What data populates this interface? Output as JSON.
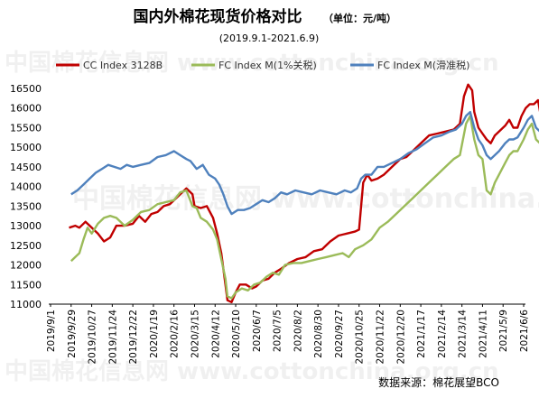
{
  "chart_data": {
    "type": "line",
    "title": "国内外棉花现货价格对比",
    "unit": "（单位：元/吨）",
    "subtitle": "(2019.9.1-2021.6.9)",
    "source": "数据来源：棉花展望BCO",
    "watermark": "中国棉花信息网 www.cottonchina.org.cn",
    "legend_position": "top",
    "ylim": [
      11000,
      16500
    ],
    "yticks": [
      "16500",
      "16000",
      "15500",
      "15000",
      "14500",
      "14000",
      "13500",
      "13000",
      "12500",
      "12000",
      "11500",
      "11000"
    ],
    "xlabels": [
      "2019/9/1",
      "2019/9/29",
      "2019/10/27",
      "2019/11/24",
      "2019/12/22",
      "2020/1/19",
      "2020/2/16",
      "2020/3/15",
      "2020/4/12",
      "2020/5/10",
      "2020/6/7",
      "2020/7/5",
      "2020/8/2",
      "2020/8/30",
      "2020/9/27",
      "2020/10/25",
      "2020/11/22",
      "2020/12/20",
      "2021/1/17",
      "2021/2/14",
      "2021/3/14",
      "2021/4/11",
      "2021/5/9",
      "2021/6/6"
    ],
    "series": [
      {
        "name": "CC Index 3128B",
        "color": "#c00000",
        "points": [
          [
            0.9,
            12950
          ],
          [
            1.2,
            13000
          ],
          [
            1.4,
            12950
          ],
          [
            1.7,
            13100
          ],
          [
            2.0,
            12950
          ],
          [
            2.3,
            12800
          ],
          [
            2.6,
            12600
          ],
          [
            2.9,
            12700
          ],
          [
            3.2,
            13000
          ],
          [
            3.6,
            13000
          ],
          [
            4.0,
            13050
          ],
          [
            4.3,
            13250
          ],
          [
            4.6,
            13100
          ],
          [
            4.9,
            13300
          ],
          [
            5.2,
            13350
          ],
          [
            5.5,
            13500
          ],
          [
            5.8,
            13550
          ],
          [
            6.2,
            13750
          ],
          [
            6.6,
            13950
          ],
          [
            6.9,
            13800
          ],
          [
            7.0,
            13500
          ],
          [
            7.3,
            13450
          ],
          [
            7.6,
            13500
          ],
          [
            7.9,
            13200
          ],
          [
            8.1,
            12800
          ],
          [
            8.3,
            12300
          ],
          [
            8.5,
            11500
          ],
          [
            8.6,
            11100
          ],
          [
            8.8,
            11050
          ],
          [
            9.0,
            11300
          ],
          [
            9.2,
            11500
          ],
          [
            9.5,
            11500
          ],
          [
            9.8,
            11400
          ],
          [
            10.0,
            11450
          ],
          [
            10.3,
            11600
          ],
          [
            10.6,
            11650
          ],
          [
            10.9,
            11800
          ],
          [
            11.2,
            11900
          ],
          [
            11.6,
            12050
          ],
          [
            12.0,
            12150
          ],
          [
            12.4,
            12200
          ],
          [
            12.8,
            12350
          ],
          [
            13.2,
            12400
          ],
          [
            13.6,
            12600
          ],
          [
            14.0,
            12750
          ],
          [
            14.4,
            12800
          ],
          [
            14.8,
            12850
          ],
          [
            15.0,
            12900
          ],
          [
            15.1,
            13500
          ],
          [
            15.2,
            14100
          ],
          [
            15.4,
            14300
          ],
          [
            15.6,
            14150
          ],
          [
            15.9,
            14200
          ],
          [
            16.2,
            14300
          ],
          [
            16.6,
            14500
          ],
          [
            17.0,
            14700
          ],
          [
            17.3,
            14750
          ],
          [
            17.6,
            14900
          ],
          [
            18.0,
            15100
          ],
          [
            18.4,
            15300
          ],
          [
            18.8,
            15350
          ],
          [
            19.2,
            15400
          ],
          [
            19.6,
            15450
          ],
          [
            19.9,
            15600
          ],
          [
            20.1,
            16300
          ],
          [
            20.3,
            16600
          ],
          [
            20.5,
            16450
          ],
          [
            20.6,
            15900
          ],
          [
            20.8,
            15500
          ],
          [
            21.0,
            15350
          ],
          [
            21.2,
            15200
          ],
          [
            21.4,
            15100
          ],
          [
            21.6,
            15300
          ],
          [
            21.8,
            15400
          ],
          [
            22.1,
            15550
          ],
          [
            22.3,
            15700
          ],
          [
            22.5,
            15500
          ],
          [
            22.7,
            15500
          ],
          [
            22.9,
            15800
          ],
          [
            23.1,
            16000
          ],
          [
            23.3,
            16100
          ],
          [
            23.5,
            16100
          ],
          [
            23.7,
            16200
          ],
          [
            23.8,
            15900
          ]
        ]
      },
      {
        "name": "FC Index M(1%关税)",
        "color": "#9bbb59",
        "points": [
          [
            1.0,
            12100
          ],
          [
            1.2,
            12200
          ],
          [
            1.4,
            12300
          ],
          [
            1.6,
            12650
          ],
          [
            1.8,
            12950
          ],
          [
            2.0,
            12800
          ],
          [
            2.3,
            13050
          ],
          [
            2.6,
            13200
          ],
          [
            2.9,
            13250
          ],
          [
            3.2,
            13200
          ],
          [
            3.6,
            13000
          ],
          [
            4.0,
            13150
          ],
          [
            4.4,
            13350
          ],
          [
            4.8,
            13400
          ],
          [
            5.2,
            13550
          ],
          [
            5.6,
            13600
          ],
          [
            6.0,
            13650
          ],
          [
            6.3,
            13850
          ],
          [
            6.6,
            13900
          ],
          [
            6.9,
            13500
          ],
          [
            7.1,
            13450
          ],
          [
            7.3,
            13200
          ],
          [
            7.6,
            13100
          ],
          [
            7.9,
            12900
          ],
          [
            8.1,
            12650
          ],
          [
            8.3,
            12150
          ],
          [
            8.5,
            11650
          ],
          [
            8.6,
            11200
          ],
          [
            8.8,
            11150
          ],
          [
            9.0,
            11300
          ],
          [
            9.3,
            11400
          ],
          [
            9.6,
            11350
          ],
          [
            9.9,
            11500
          ],
          [
            10.2,
            11550
          ],
          [
            10.5,
            11700
          ],
          [
            10.8,
            11800
          ],
          [
            11.1,
            11750
          ],
          [
            11.4,
            12000
          ],
          [
            11.8,
            12050
          ],
          [
            12.2,
            12050
          ],
          [
            12.6,
            12100
          ],
          [
            13.0,
            12150
          ],
          [
            13.4,
            12200
          ],
          [
            13.8,
            12250
          ],
          [
            14.2,
            12300
          ],
          [
            14.5,
            12200
          ],
          [
            14.8,
            12400
          ],
          [
            15.2,
            12500
          ],
          [
            15.6,
            12650
          ],
          [
            16.0,
            12950
          ],
          [
            16.4,
            13100
          ],
          [
            16.8,
            13300
          ],
          [
            17.2,
            13500
          ],
          [
            17.6,
            13700
          ],
          [
            18.0,
            13900
          ],
          [
            18.4,
            14100
          ],
          [
            18.8,
            14300
          ],
          [
            19.2,
            14500
          ],
          [
            19.6,
            14700
          ],
          [
            19.9,
            14800
          ],
          [
            20.2,
            15600
          ],
          [
            20.4,
            15800
          ],
          [
            20.6,
            15200
          ],
          [
            20.8,
            14800
          ],
          [
            21.0,
            14700
          ],
          [
            21.2,
            13900
          ],
          [
            21.4,
            13800
          ],
          [
            21.6,
            14100
          ],
          [
            21.8,
            14300
          ],
          [
            22.1,
            14600
          ],
          [
            22.3,
            14800
          ],
          [
            22.5,
            14900
          ],
          [
            22.7,
            14900
          ],
          [
            23.0,
            15200
          ],
          [
            23.2,
            15450
          ],
          [
            23.4,
            15600
          ],
          [
            23.6,
            15200
          ],
          [
            23.8,
            15100
          ]
        ]
      },
      {
        "name": "FC Index M(滑准税)",
        "color": "#4f81bd",
        "points": [
          [
            1.0,
            13800
          ],
          [
            1.3,
            13900
          ],
          [
            1.6,
            14050
          ],
          [
            1.9,
            14200
          ],
          [
            2.2,
            14350
          ],
          [
            2.5,
            14450
          ],
          [
            2.8,
            14550
          ],
          [
            3.1,
            14500
          ],
          [
            3.4,
            14450
          ],
          [
            3.7,
            14550
          ],
          [
            4.0,
            14500
          ],
          [
            4.4,
            14550
          ],
          [
            4.8,
            14600
          ],
          [
            5.2,
            14750
          ],
          [
            5.6,
            14800
          ],
          [
            6.0,
            14900
          ],
          [
            6.3,
            14800
          ],
          [
            6.6,
            14700
          ],
          [
            6.8,
            14650
          ],
          [
            7.1,
            14450
          ],
          [
            7.4,
            14550
          ],
          [
            7.7,
            14300
          ],
          [
            8.0,
            14200
          ],
          [
            8.2,
            14050
          ],
          [
            8.4,
            13800
          ],
          [
            8.6,
            13500
          ],
          [
            8.8,
            13300
          ],
          [
            9.1,
            13400
          ],
          [
            9.4,
            13400
          ],
          [
            9.7,
            13450
          ],
          [
            10.0,
            13550
          ],
          [
            10.3,
            13650
          ],
          [
            10.6,
            13600
          ],
          [
            10.9,
            13700
          ],
          [
            11.2,
            13850
          ],
          [
            11.5,
            13800
          ],
          [
            11.9,
            13900
          ],
          [
            12.3,
            13850
          ],
          [
            12.7,
            13800
          ],
          [
            13.1,
            13900
          ],
          [
            13.5,
            13850
          ],
          [
            13.9,
            13800
          ],
          [
            14.3,
            13900
          ],
          [
            14.6,
            13850
          ],
          [
            14.9,
            13950
          ],
          [
            15.1,
            14200
          ],
          [
            15.3,
            14300
          ],
          [
            15.6,
            14300
          ],
          [
            15.9,
            14500
          ],
          [
            16.2,
            14500
          ],
          [
            16.6,
            14600
          ],
          [
            17.0,
            14700
          ],
          [
            17.4,
            14850
          ],
          [
            17.8,
            14950
          ],
          [
            18.2,
            15100
          ],
          [
            18.6,
            15250
          ],
          [
            19.0,
            15300
          ],
          [
            19.4,
            15400
          ],
          [
            19.7,
            15450
          ],
          [
            20.0,
            15600
          ],
          [
            20.2,
            15800
          ],
          [
            20.4,
            15900
          ],
          [
            20.6,
            15500
          ],
          [
            20.8,
            15200
          ],
          [
            21.0,
            15050
          ],
          [
            21.2,
            14800
          ],
          [
            21.4,
            14700
          ],
          [
            21.6,
            14800
          ],
          [
            21.8,
            14900
          ],
          [
            22.1,
            15100
          ],
          [
            22.3,
            15200
          ],
          [
            22.5,
            15200
          ],
          [
            22.7,
            15250
          ],
          [
            23.0,
            15500
          ],
          [
            23.2,
            15700
          ],
          [
            23.4,
            15800
          ],
          [
            23.6,
            15500
          ],
          [
            23.8,
            15400
          ]
        ]
      }
    ]
  }
}
